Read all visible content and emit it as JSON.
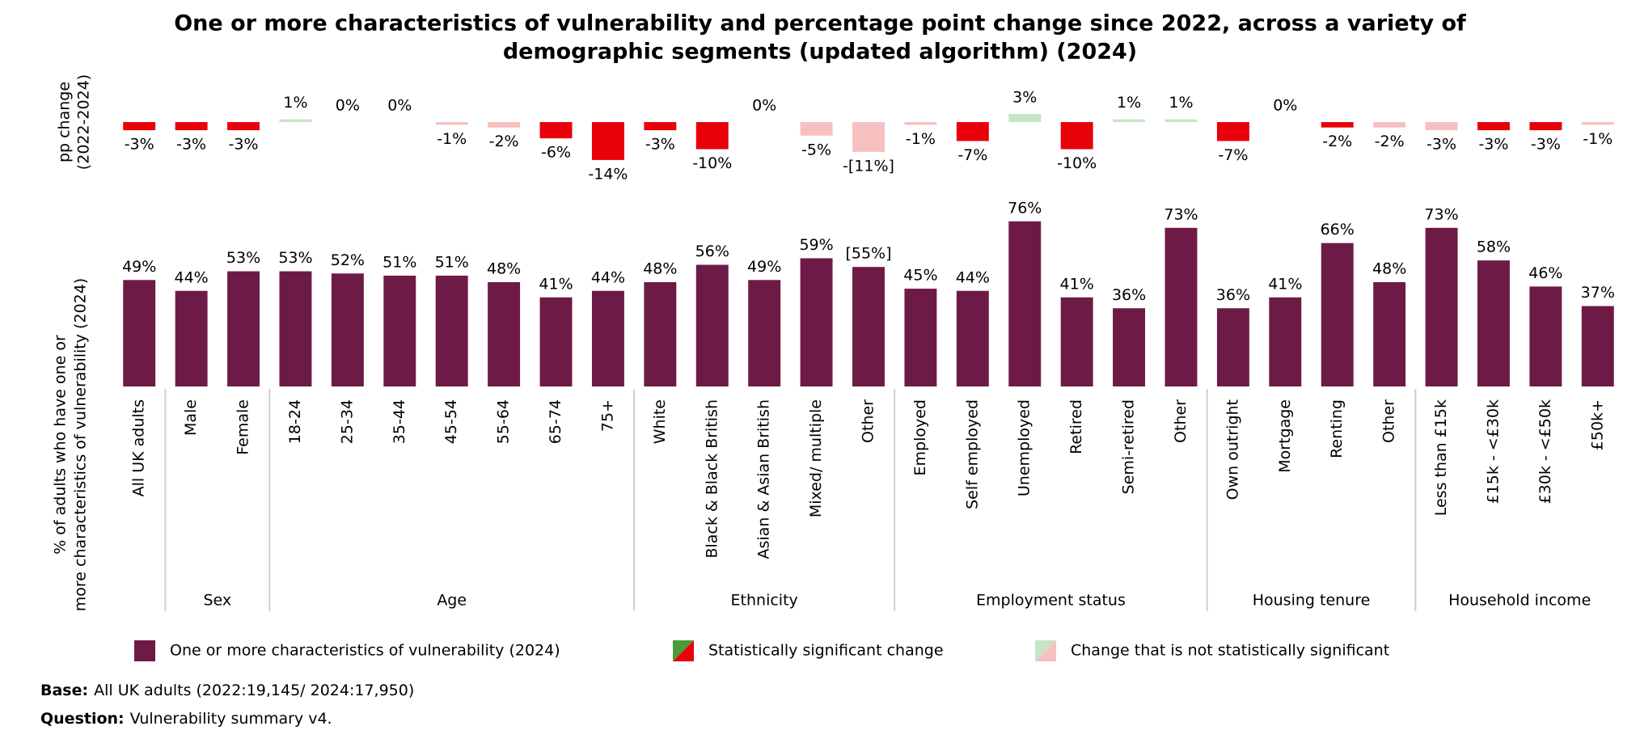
{
  "chart_data": {
    "type": "bar",
    "title": [
      "One or more characteristics of vulnerability and percentage point change since 2022, across a variety of",
      "demographic segments (updated algorithm) (2024)"
    ],
    "y_label": [
      "% of adults who have one or",
      "more characteristics of vulnerability (2024)"
    ],
    "y2_label": [
      "pp change",
      "(2022-2024)"
    ],
    "groups": [
      {
        "label": null,
        "categories": [
          "All UK adults"
        ]
      },
      {
        "label": "Sex",
        "categories": [
          "Male",
          "Female"
        ]
      },
      {
        "label": "Age",
        "categories": [
          "18-24",
          "25-34",
          "35-44",
          "45-54",
          "55-64",
          "65-74",
          "75+"
        ]
      },
      {
        "label": "Ethnicity",
        "categories": [
          "White",
          "Black & Black British",
          "Asian & Asian British",
          "Mixed/ multiple",
          "Other"
        ]
      },
      {
        "label": "Employment status",
        "categories": [
          "Employed",
          "Self employed",
          "Unemployed",
          "Retired",
          "Semi-retired",
          "Other"
        ]
      },
      {
        "label": "Housing tenure",
        "categories": [
          "Own outright",
          "Mortgage",
          "Renting",
          "Other"
        ]
      },
      {
        "label": "Household income",
        "categories": [
          "Less than £15k",
          "£15k - <£30k",
          "£30k - <£50k",
          "£50k+"
        ]
      }
    ],
    "series": [
      {
        "name": "One or more characteristics of vulnerability (2024)",
        "color": "#6d1b46",
        "values": [
          49,
          44,
          53,
          53,
          52,
          51,
          51,
          48,
          41,
          44,
          48,
          56,
          49,
          59,
          55,
          45,
          44,
          76,
          41,
          36,
          73,
          36,
          41,
          66,
          48,
          73,
          58,
          46,
          37
        ],
        "value_labels": [
          "49%",
          "44%",
          "53%",
          "53%",
          "52%",
          "51%",
          "51%",
          "48%",
          "41%",
          "44%",
          "48%",
          "56%",
          "49%",
          "59%",
          "[55%]",
          "45%",
          "44%",
          "76%",
          "41%",
          "36%",
          "73%",
          "36%",
          "41%",
          "66%",
          "48%",
          "73%",
          "58%",
          "46%",
          "37%"
        ]
      }
    ],
    "ylim": [
      0,
      80
    ],
    "change": {
      "values": [
        -3,
        -3,
        -3,
        1,
        0,
        0,
        -1,
        -2,
        -6,
        -14,
        -3,
        -10,
        0,
        -5,
        -11,
        -1,
        -7,
        3,
        -10,
        1,
        1,
        -7,
        0,
        -2,
        -2,
        -3,
        -3,
        -3,
        -1
      ],
      "value_labels": [
        "-3%",
        "-3%",
        "-3%",
        "1%",
        "0%",
        "0%",
        "-1%",
        "-2%",
        "-6%",
        "-14%",
        "-3%",
        "-10%",
        "0%",
        "-5%",
        "-[11%]",
        "-1%",
        "-7%",
        "3%",
        "-10%",
        "1%",
        "1%",
        "-7%",
        "0%",
        "-2%",
        "-2%",
        "-3%",
        "-3%",
        "-3%",
        "-1%"
      ],
      "colors": [
        "#e8000b",
        "#e8000b",
        "#e8000b",
        "#c6e5c6",
        "#c6e5c6",
        "#c6e5c6",
        "#f7c0c0",
        "#f7c0c0",
        "#e8000b",
        "#e8000b",
        "#e8000b",
        "#e8000b",
        "#c6e5c6",
        "#f7c0c0",
        "#f7c0c0",
        "#f7c0c0",
        "#e8000b",
        "#c6e5c6",
        "#e8000b",
        "#c6e5c6",
        "#c6e5c6",
        "#e8000b",
        "#c6e5c6",
        "#e8000b",
        "#f7c0c0",
        "#f7c0c0",
        "#e8000b",
        "#e8000b",
        "#f7c0c0"
      ],
      "ylim": [
        -15,
        5
      ]
    },
    "legend": [
      {
        "label": "Statistically significant change",
        "colors": [
          "#4a9a3a",
          "#e8000b"
        ]
      },
      {
        "label": "Change that is not statistically significant",
        "colors": [
          "#c6e5c6",
          "#f7c0c0"
        ]
      }
    ],
    "footnotes": [
      {
        "key": "Base:",
        "text": "All UK adults (2022:19,145/ 2024:17,950)"
      },
      {
        "key": "Question:",
        "text": "Vulnerability summary v4."
      }
    ]
  }
}
